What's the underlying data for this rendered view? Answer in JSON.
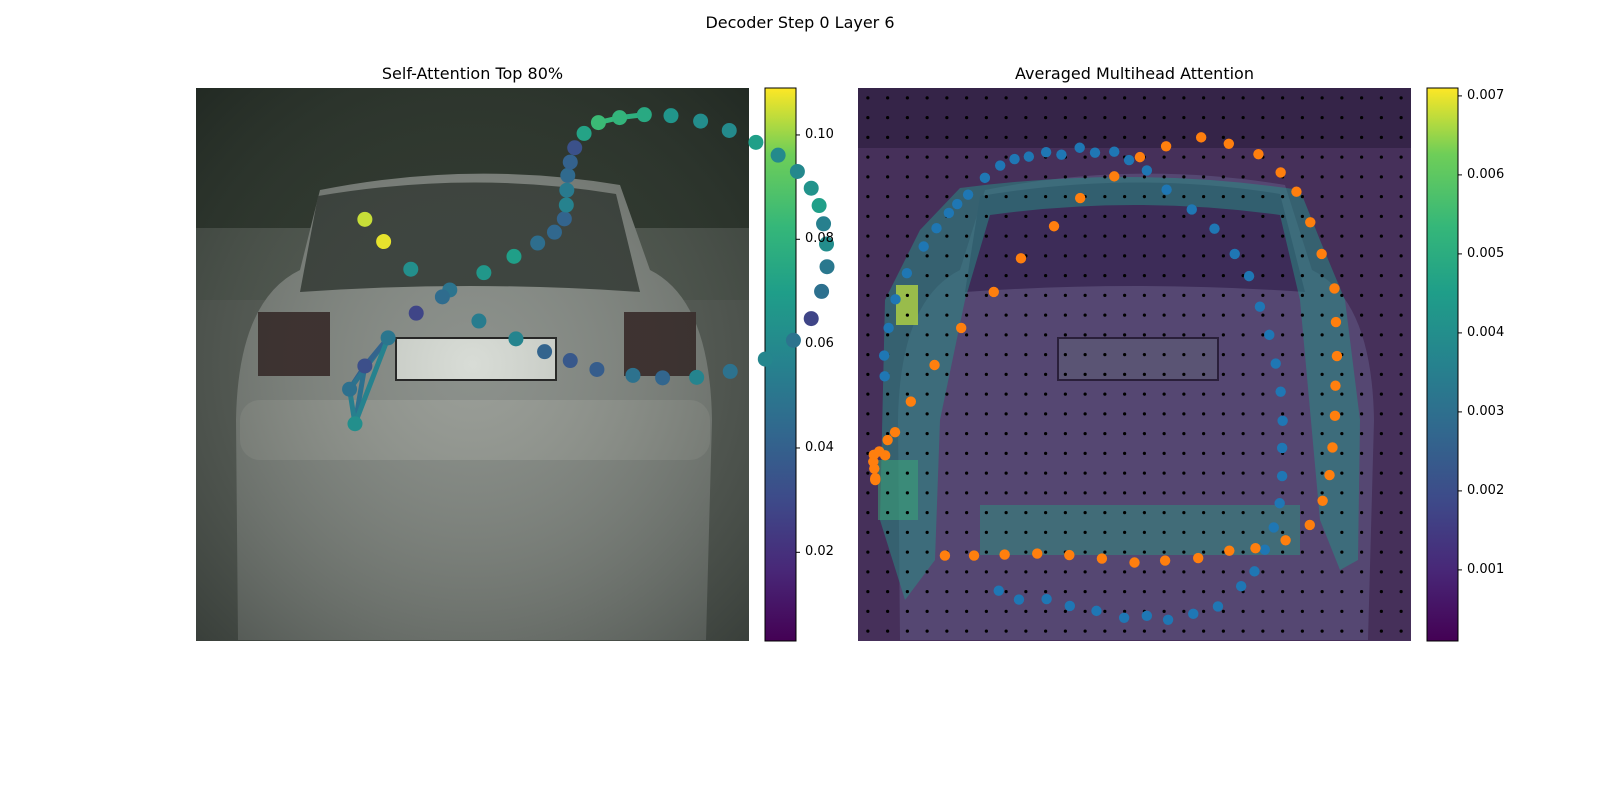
{
  "figure": {
    "suptitle": "Decoder Step 0 Layer 6"
  },
  "chart_data": [
    {
      "type": "scatter",
      "title": "Self-Attention Top 80%",
      "colormap": "viridis",
      "colorbar": {
        "min": 0.003,
        "max": 0.109,
        "ticks": [
          "0.02",
          "0.04",
          "0.06",
          "0.08",
          "0.10"
        ],
        "tick_values": [
          0.02,
          0.04,
          0.06,
          0.08,
          0.1
        ]
      },
      "background": "grayscale car rear photo (camera image)",
      "axes_visible": false,
      "points": {
        "x": [
          32.2,
          31.1,
          34.2,
          38.9,
          44.6,
          51.4,
          58.3,
          64.4,
          69.2,
          72.6,
          74.6,
          75.0,
          75.1,
          75.3,
          75.8,
          76.7,
          78.6,
          81.5,
          85.8,
          90.8,
          96.2,
          102.2,
          108.0,
          113.4,
          117.9,
          121.8,
          124.6,
          126.2,
          127.1,
          127.7,
          127.8,
          126.7,
          124.6,
          121.0,
          115.3,
          108.2,
          101.4,
          94.5,
          88.5,
          81.2,
          75.8,
          70.6,
          64.8,
          57.3,
          49.9,
          43.5,
          38.0,
          34.2
        ],
        "y": [
          68.0,
          61.0,
          56.3,
          50.6,
          45.6,
          40.9,
          37.4,
          34.1,
          31.4,
          29.2,
          26.5,
          23.7,
          20.7,
          17.7,
          15.0,
          12.1,
          9.2,
          7.0,
          6.0,
          5.4,
          5.6,
          6.7,
          8.6,
          11.0,
          13.6,
          16.9,
          20.3,
          23.8,
          27.5,
          31.6,
          36.2,
          41.2,
          46.7,
          51.1,
          54.9,
          57.4,
          58.6,
          58.7,
          58.2,
          57.0,
          55.2,
          53.4,
          50.8,
          47.2,
          42.3,
          36.7,
          31.1,
          26.6
        ],
        "color_values": [
          0.062,
          0.047,
          0.032,
          0.05,
          0.028,
          0.049,
          0.066,
          0.07,
          0.046,
          0.043,
          0.041,
          0.056,
          0.052,
          0.044,
          0.04,
          0.033,
          0.072,
          0.084,
          0.081,
          0.075,
          0.065,
          0.061,
          0.06,
          0.07,
          0.06,
          0.059,
          0.064,
          0.07,
          0.055,
          0.061,
          0.051,
          0.047,
          0.028,
          0.049,
          0.058,
          0.048,
          0.057,
          0.042,
          0.048,
          0.038,
          0.036,
          0.041,
          0.057,
          0.053,
          0.045,
          0.062,
          0.107,
          0.104
        ]
      },
      "attention_lines": [
        [
          0,
          2
        ],
        [
          1,
          2
        ],
        [
          0,
          1
        ],
        [
          18,
          19
        ],
        [
          17,
          18
        ],
        [
          1,
          3
        ],
        [
          2,
          3
        ],
        [
          0,
          3
        ]
      ]
    },
    {
      "type": "heatmap",
      "title": "Averaged Multihead Attention",
      "colormap": "viridis",
      "colorbar": {
        "min": 0.0001,
        "max": 0.0071,
        "ticks": [
          "0.001",
          "0.002",
          "0.003",
          "0.004",
          "0.005",
          "0.006",
          "0.007"
        ],
        "tick_values": [
          0.001,
          0.002,
          0.003,
          0.004,
          0.005,
          0.006,
          0.007
        ]
      },
      "background": "grayscale car rear photo overlaid with attention heatmap",
      "axes_visible": false,
      "grid_points": {
        "color": "#000000",
        "rows": 28,
        "cols": 28
      },
      "series": [
        {
          "name": "",
          "color": "#1f77b4",
          "x": [
            5.4,
            5.3,
            6.2,
            7.6,
            9.9,
            13.3,
            15.9,
            18.4,
            20.1,
            22.3,
            25.7,
            28.8,
            31.7,
            34.6,
            38.1,
            41.2,
            44.9,
            48.0,
            51.9,
            54.9,
            58.5,
            62.5,
            67.6,
            72.2,
            76.3,
            79.2,
            81.4,
            83.3,
            84.6,
            85.6,
            86.0,
            85.9,
            85.9,
            85.4,
            84.2,
            82.4,
            80.3,
            77.6,
            72.9,
            67.9,
            62.8,
            58.5,
            53.9,
            48.3,
            42.9,
            38.2,
            32.6,
            28.5
          ],
          "y": [
            58.4,
            54.2,
            48.6,
            42.8,
            37.5,
            32.1,
            28.4,
            25.3,
            23.5,
            21.6,
            18.2,
            15.7,
            14.4,
            13.9,
            13.0,
            13.5,
            12.1,
            13.1,
            12.9,
            14.6,
            16.7,
            20.6,
            24.6,
            28.5,
            33.6,
            38.1,
            44.3,
            50.0,
            55.8,
            61.5,
            67.4,
            72.9,
            78.6,
            84.1,
            89.0,
            93.5,
            97.9,
            100.9,
            105.0,
            106.5,
            107.7,
            106.9,
            107.3,
            105.9,
            104.9,
            103.5,
            103.6,
            101.8
          ]
        },
        {
          "name": "",
          "color": "#ff7f0e",
          "x": [
            6.0,
            4.3,
            3.2,
            3.1,
            3.3,
            3.5,
            3.5,
            3.5,
            5.5,
            7.5,
            10.7,
            15.5,
            20.9,
            27.5,
            33.0,
            39.7,
            45.0,
            51.9,
            57.1,
            62.4,
            69.5,
            75.1,
            81.1,
            85.6,
            88.8,
            91.6,
            93.9,
            96.5,
            96.8,
            97.0,
            96.7,
            96.6,
            96.1,
            95.5,
            94.1,
            91.5,
            86.6,
            80.5,
            75.2,
            68.9,
            62.2,
            56.0,
            49.4,
            42.8,
            36.3,
            29.7,
            23.5,
            17.6
          ],
          "y": [
            71.3,
            73.6,
            74.3,
            75.7,
            77.1,
            79.3,
            79.4,
            79.0,
            74.4,
            69.7,
            63.5,
            56.1,
            48.6,
            41.3,
            34.5,
            28.0,
            22.3,
            17.9,
            14.0,
            11.8,
            10.0,
            11.3,
            13.4,
            17.1,
            21.0,
            27.2,
            33.6,
            40.6,
            47.4,
            54.3,
            60.3,
            66.4,
            72.8,
            78.4,
            83.6,
            88.5,
            91.6,
            93.2,
            93.7,
            95.2,
            95.7,
            96.1,
            95.3,
            94.6,
            94.3,
            94.5,
            94.7,
            94.7
          ]
        }
      ]
    }
  ]
}
